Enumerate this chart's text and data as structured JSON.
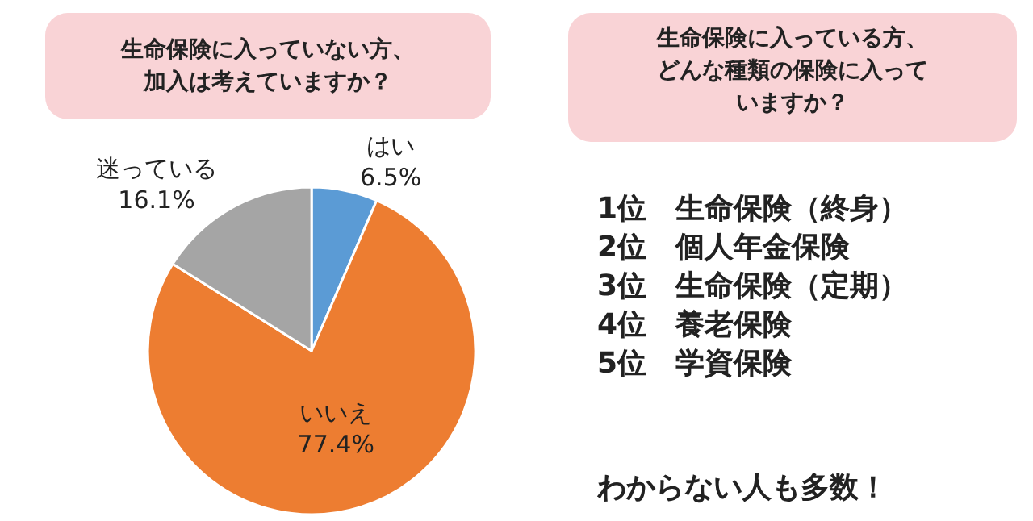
{
  "chart_data": [
    {
      "type": "pie",
      "title": "生命保険に入っていない方、加入は考えていますか？",
      "categories": [
        "はい",
        "いいえ",
        "迷っている"
      ],
      "values": [
        6.5,
        77.4,
        16.1
      ],
      "value_labels": [
        "6.5%",
        "77.4%",
        "16.1%"
      ],
      "colors": [
        "#5b9bd5",
        "#ed7d31",
        "#a5a5a5"
      ],
      "legend": false
    },
    {
      "type": "other",
      "title": "生命保険に入っている方、どんな種類の保険に入っていますか？",
      "annotations": [
        "1位　生命保険（終身）",
        "2位　個人年金保険",
        "3位　生命保険（定期）",
        "4位　養老保険",
        "5位　学資保険",
        "わからない人も多数！"
      ]
    }
  ]
}
